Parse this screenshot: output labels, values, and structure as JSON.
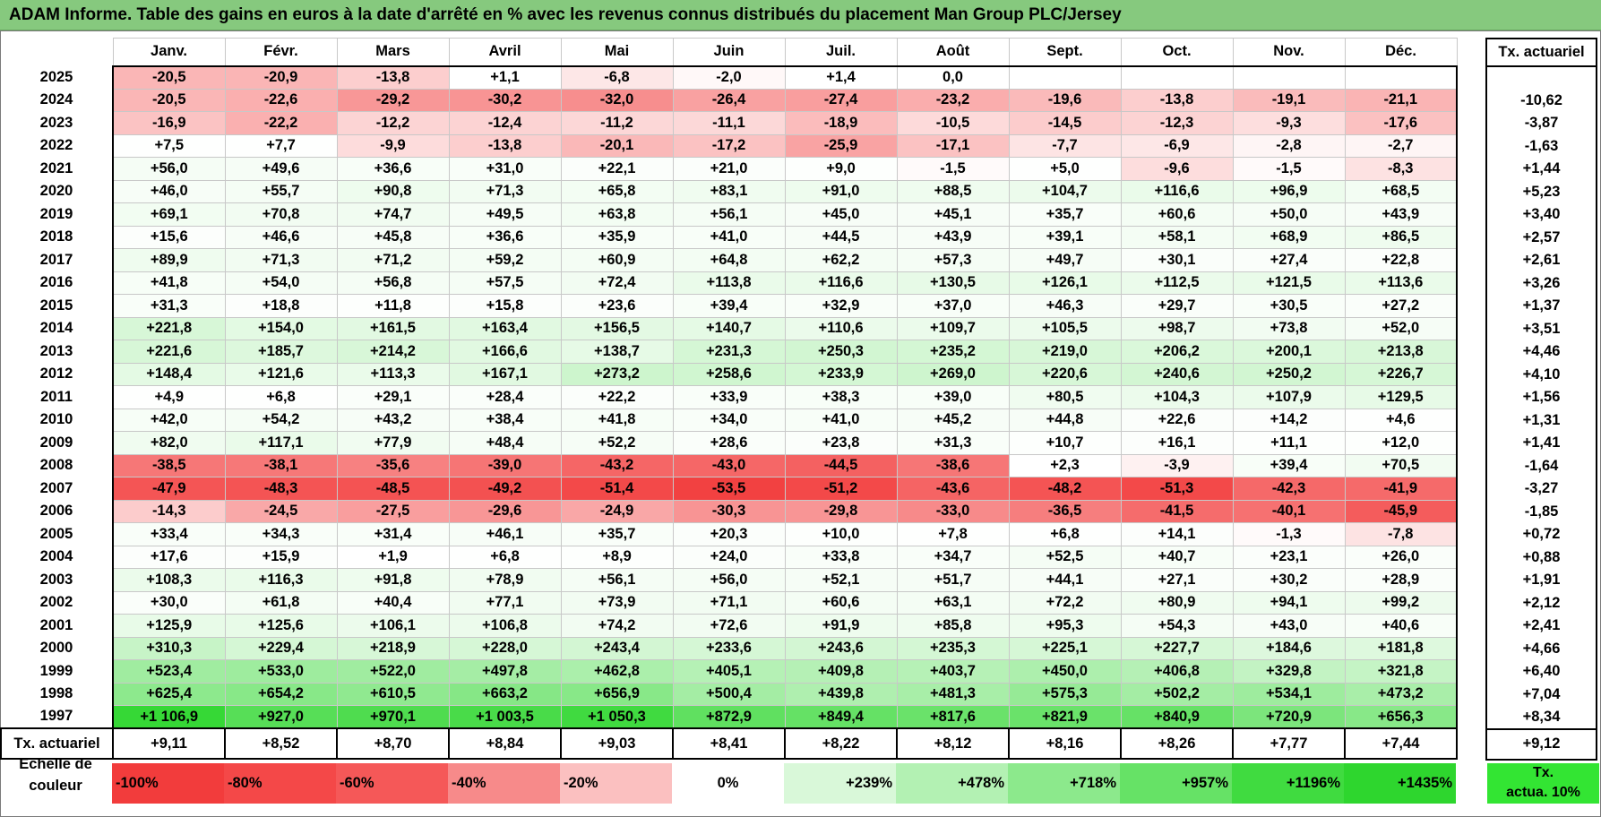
{
  "title": "ADAM Informe. Table des gains en euros à la date d'arrêté en % avec les revenus connus distribués du placement Man Group PLC/Jersey",
  "months": [
    "Janv.",
    "Févr.",
    "Mars",
    "Avril",
    "Mai",
    "Juin",
    "Juil.",
    "Août",
    "Sept.",
    "Oct.",
    "Nov.",
    "Déc."
  ],
  "tx_header": "Tx. actuariel",
  "rows": [
    {
      "year": "2025",
      "cells": [
        "-20,5",
        "-20,9",
        "-13,8",
        "+1,1",
        "-6,8",
        "-2,0",
        "+1,4",
        "0,0",
        "",
        "",
        "",
        ""
      ],
      "tx": ""
    },
    {
      "year": "2024",
      "cells": [
        "-20,5",
        "-22,6",
        "-29,2",
        "-30,2",
        "-32,0",
        "-26,4",
        "-27,4",
        "-23,2",
        "-19,6",
        "-13,8",
        "-19,1",
        "-21,1"
      ],
      "tx": "-10,62"
    },
    {
      "year": "2023",
      "cells": [
        "-16,9",
        "-22,2",
        "-12,2",
        "-12,4",
        "-11,2",
        "-11,1",
        "-18,9",
        "-10,5",
        "-14,5",
        "-12,3",
        "-9,3",
        "-17,6"
      ],
      "tx": "-3,87"
    },
    {
      "year": "2022",
      "cells": [
        "+7,5",
        "+7,7",
        "-9,9",
        "-13,8",
        "-20,1",
        "-17,2",
        "-25,9",
        "-17,1",
        "-7,7",
        "-6,9",
        "-2,8",
        "-2,7"
      ],
      "tx": "-1,63"
    },
    {
      "year": "2021",
      "cells": [
        "+56,0",
        "+49,6",
        "+36,6",
        "+31,0",
        "+22,1",
        "+21,0",
        "+9,0",
        "-1,5",
        "+5,0",
        "-9,6",
        "-1,5",
        "-8,3"
      ],
      "tx": "+1,44"
    },
    {
      "year": "2020",
      "cells": [
        "+46,0",
        "+55,7",
        "+90,8",
        "+71,3",
        "+65,8",
        "+83,1",
        "+91,0",
        "+88,5",
        "+104,7",
        "+116,6",
        "+96,9",
        "+68,5"
      ],
      "tx": "+5,23"
    },
    {
      "year": "2019",
      "cells": [
        "+69,1",
        "+70,8",
        "+74,7",
        "+49,5",
        "+63,8",
        "+56,1",
        "+45,0",
        "+45,1",
        "+35,7",
        "+60,6",
        "+50,0",
        "+43,9"
      ],
      "tx": "+3,40"
    },
    {
      "year": "2018",
      "cells": [
        "+15,6",
        "+46,6",
        "+45,8",
        "+36,6",
        "+35,9",
        "+41,0",
        "+44,5",
        "+43,9",
        "+39,1",
        "+58,1",
        "+68,9",
        "+86,5"
      ],
      "tx": "+2,57"
    },
    {
      "year": "2017",
      "cells": [
        "+89,9",
        "+71,3",
        "+71,2",
        "+59,2",
        "+60,9",
        "+64,8",
        "+62,2",
        "+57,3",
        "+49,7",
        "+30,1",
        "+27,4",
        "+22,8"
      ],
      "tx": "+2,61"
    },
    {
      "year": "2016",
      "cells": [
        "+41,8",
        "+54,0",
        "+56,8",
        "+57,5",
        "+72,4",
        "+113,8",
        "+116,6",
        "+130,5",
        "+126,1",
        "+112,5",
        "+121,5",
        "+113,6"
      ],
      "tx": "+3,26"
    },
    {
      "year": "2015",
      "cells": [
        "+31,3",
        "+18,8",
        "+11,8",
        "+15,8",
        "+23,6",
        "+39,4",
        "+32,9",
        "+37,0",
        "+46,3",
        "+29,7",
        "+30,5",
        "+27,2"
      ],
      "tx": "+1,37"
    },
    {
      "year": "2014",
      "cells": [
        "+221,8",
        "+154,0",
        "+161,5",
        "+163,4",
        "+156,5",
        "+140,7",
        "+110,6",
        "+109,7",
        "+105,5",
        "+98,7",
        "+73,8",
        "+52,0"
      ],
      "tx": "+3,51"
    },
    {
      "year": "2013",
      "cells": [
        "+221,6",
        "+185,7",
        "+214,2",
        "+166,6",
        "+138,7",
        "+231,3",
        "+250,3",
        "+235,2",
        "+219,0",
        "+206,2",
        "+200,1",
        "+213,8"
      ],
      "tx": "+4,46"
    },
    {
      "year": "2012",
      "cells": [
        "+148,4",
        "+121,6",
        "+113,3",
        "+167,1",
        "+273,2",
        "+258,6",
        "+233,9",
        "+269,0",
        "+220,6",
        "+240,6",
        "+250,2",
        "+226,7"
      ],
      "tx": "+4,10"
    },
    {
      "year": "2011",
      "cells": [
        "+4,9",
        "+6,8",
        "+29,1",
        "+28,4",
        "+22,2",
        "+33,9",
        "+38,3",
        "+39,0",
        "+80,5",
        "+104,3",
        "+107,9",
        "+129,5"
      ],
      "tx": "+1,56"
    },
    {
      "year": "2010",
      "cells": [
        "+42,0",
        "+54,2",
        "+43,2",
        "+38,4",
        "+41,8",
        "+34,0",
        "+41,0",
        "+45,2",
        "+44,8",
        "+22,6",
        "+14,2",
        "+4,6"
      ],
      "tx": "+1,31"
    },
    {
      "year": "2009",
      "cells": [
        "+82,0",
        "+117,1",
        "+77,9",
        "+48,4",
        "+52,2",
        "+28,6",
        "+23,8",
        "+31,3",
        "+10,7",
        "+16,1",
        "+11,1",
        "+12,0"
      ],
      "tx": "+1,41"
    },
    {
      "year": "2008",
      "cells": [
        "-38,5",
        "-38,1",
        "-35,6",
        "-39,0",
        "-43,2",
        "-43,0",
        "-44,5",
        "-38,6",
        "+2,3",
        "-3,9",
        "+39,4",
        "+70,5"
      ],
      "tx": "-1,64"
    },
    {
      "year": "2007",
      "cells": [
        "-47,9",
        "-48,3",
        "-48,5",
        "-49,2",
        "-51,4",
        "-53,5",
        "-51,2",
        "-43,6",
        "-48,2",
        "-51,3",
        "-42,3",
        "-41,9"
      ],
      "tx": "-3,27"
    },
    {
      "year": "2006",
      "cells": [
        "-14,3",
        "-24,5",
        "-27,5",
        "-29,6",
        "-24,9",
        "-30,3",
        "-29,8",
        "-33,0",
        "-36,5",
        "-41,5",
        "-40,1",
        "-45,9"
      ],
      "tx": "-1,85"
    },
    {
      "year": "2005",
      "cells": [
        "+33,4",
        "+34,3",
        "+31,4",
        "+46,1",
        "+35,7",
        "+20,3",
        "+10,0",
        "+7,8",
        "+6,8",
        "+14,1",
        "-1,3",
        "-7,8"
      ],
      "tx": "+0,72"
    },
    {
      "year": "2004",
      "cells": [
        "+17,6",
        "+15,9",
        "+1,9",
        "+6,8",
        "+8,9",
        "+24,0",
        "+33,8",
        "+34,7",
        "+52,5",
        "+40,7",
        "+23,1",
        "+26,0"
      ],
      "tx": "+0,88"
    },
    {
      "year": "2003",
      "cells": [
        "+108,3",
        "+116,3",
        "+91,8",
        "+78,9",
        "+56,1",
        "+56,0",
        "+52,1",
        "+51,7",
        "+44,1",
        "+27,1",
        "+30,2",
        "+28,9"
      ],
      "tx": "+1,91"
    },
    {
      "year": "2002",
      "cells": [
        "+30,0",
        "+61,8",
        "+40,4",
        "+77,1",
        "+73,9",
        "+71,1",
        "+60,6",
        "+63,1",
        "+72,2",
        "+80,9",
        "+94,1",
        "+99,2"
      ],
      "tx": "+2,12"
    },
    {
      "year": "2001",
      "cells": [
        "+125,9",
        "+125,6",
        "+106,1",
        "+106,8",
        "+74,2",
        "+72,6",
        "+91,9",
        "+85,8",
        "+95,3",
        "+54,3",
        "+43,0",
        "+40,6"
      ],
      "tx": "+2,41"
    },
    {
      "year": "2000",
      "cells": [
        "+310,3",
        "+229,4",
        "+218,9",
        "+228,0",
        "+243,4",
        "+233,6",
        "+243,6",
        "+235,3",
        "+225,1",
        "+227,7",
        "+184,6",
        "+181,8"
      ],
      "tx": "+4,66"
    },
    {
      "year": "1999",
      "cells": [
        "+523,4",
        "+533,0",
        "+522,0",
        "+497,8",
        "+462,8",
        "+405,1",
        "+409,8",
        "+403,7",
        "+450,0",
        "+406,8",
        "+329,8",
        "+321,8"
      ],
      "tx": "+6,40"
    },
    {
      "year": "1998",
      "cells": [
        "+625,4",
        "+654,2",
        "+610,5",
        "+663,2",
        "+656,9",
        "+500,4",
        "+439,8",
        "+481,3",
        "+575,3",
        "+502,2",
        "+534,1",
        "+473,2"
      ],
      "tx": "+7,04"
    },
    {
      "year": "1997",
      "cells": [
        "+1 106,9",
        "+927,0",
        "+970,1",
        "+1 003,5",
        "+1 050,3",
        "+872,9",
        "+849,4",
        "+817,6",
        "+821,9",
        "+840,9",
        "+720,9",
        "+656,3"
      ],
      "tx": "+8,34"
    }
  ],
  "summary": {
    "label": "Tx. actuariel",
    "cells": [
      "+9,11",
      "+8,52",
      "+8,70",
      "+8,84",
      "+9,03",
      "+8,41",
      "+8,22",
      "+8,12",
      "+8,16",
      "+8,26",
      "+7,77",
      "+7,44"
    ],
    "tx": "+9,12"
  },
  "scale": {
    "label_line1": "Echelle de",
    "label_line2": "couleur",
    "steps": [
      {
        "text": "-100%",
        "value": -100,
        "color": "#f23c3c"
      },
      {
        "text": "-80%",
        "value": -80,
        "color": "#f44848"
      },
      {
        "text": "-60%",
        "value": -60,
        "color": "#f55858"
      },
      {
        "text": "-40%",
        "value": -40,
        "color": "#f78a8a"
      },
      {
        "text": "-20%",
        "value": -20,
        "color": "#fbc0c0"
      },
      {
        "text": "0%",
        "value": 0,
        "color": "#ffffff"
      },
      {
        "text": "+239%",
        "value": 239,
        "color": "#d9f8d9"
      },
      {
        "text": "+478%",
        "value": 478,
        "color": "#b3f1b3"
      },
      {
        "text": "+718%",
        "value": 718,
        "color": "#8ce98c"
      },
      {
        "text": "+957%",
        "value": 957,
        "color": "#66e266"
      },
      {
        "text": "+1196%",
        "value": 1196,
        "color": "#40db40"
      },
      {
        "text": "+1435%",
        "value": 1435,
        "color": "#2ed62e"
      }
    ],
    "tx_line1": "Tx.",
    "tx_line2": "actua. 10%"
  },
  "colors": {
    "title_bg": "#86c97e",
    "neg_max": "#f23c3c",
    "pos_max": "#2ed62e"
  }
}
